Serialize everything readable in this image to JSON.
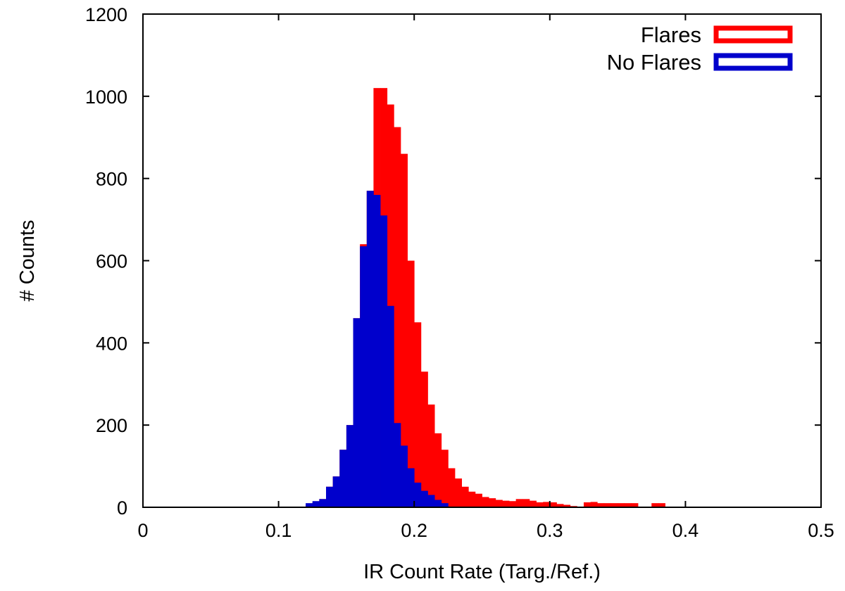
{
  "chart_data": {
    "type": "bar",
    "xlabel": "IR Count Rate (Targ./Ref.)",
    "ylabel": "# Counts",
    "xlim": [
      0,
      0.5
    ],
    "ylim": [
      0,
      1200
    ],
    "xticks": [
      "0",
      "0.1",
      "0.2",
      "0.3",
      "0.4",
      "0.5"
    ],
    "yticks": [
      "0",
      "200",
      "400",
      "600",
      "800",
      "1000",
      "1200"
    ],
    "bin_width": 0.005,
    "legend_position": "top-right",
    "series": [
      {
        "name": "Flares",
        "color": "#ff0000",
        "x": [
          0.12,
          0.125,
          0.13,
          0.135,
          0.14,
          0.145,
          0.15,
          0.155,
          0.16,
          0.165,
          0.17,
          0.175,
          0.18,
          0.185,
          0.19,
          0.195,
          0.2,
          0.205,
          0.21,
          0.215,
          0.22,
          0.225,
          0.23,
          0.235,
          0.24,
          0.245,
          0.25,
          0.255,
          0.26,
          0.265,
          0.27,
          0.275,
          0.28,
          0.285,
          0.29,
          0.295,
          0.3,
          0.305,
          0.31,
          0.315,
          0.32,
          0.325,
          0.33,
          0.335,
          0.34,
          0.345,
          0.35,
          0.355,
          0.36,
          0.365,
          0.37,
          0.375,
          0.38
        ],
        "values": [
          5,
          12,
          20,
          50,
          75,
          140,
          200,
          460,
          640,
          770,
          1020,
          1020,
          980,
          925,
          860,
          600,
          450,
          330,
          250,
          180,
          140,
          95,
          70,
          50,
          38,
          33,
          25,
          22,
          18,
          16,
          15,
          20,
          20,
          16,
          12,
          13,
          12,
          8,
          6,
          3,
          0,
          12,
          13,
          10,
          10,
          10,
          10,
          10,
          10,
          0,
          0,
          10,
          10
        ]
      },
      {
        "name": "No Flares",
        "color": "#0000cc",
        "x": [
          0.12,
          0.125,
          0.13,
          0.135,
          0.14,
          0.145,
          0.15,
          0.155,
          0.16,
          0.165,
          0.17,
          0.175,
          0.18,
          0.185,
          0.19,
          0.195,
          0.2,
          0.205,
          0.21,
          0.215,
          0.22
        ],
        "values": [
          10,
          15,
          20,
          50,
          75,
          140,
          200,
          460,
          635,
          770,
          760,
          710,
          490,
          205,
          150,
          95,
          60,
          40,
          30,
          18,
          10
        ]
      }
    ]
  }
}
